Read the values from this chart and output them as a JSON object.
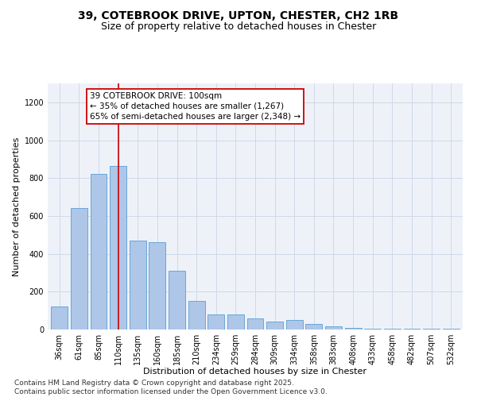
{
  "title1": "39, COTEBROOK DRIVE, UPTON, CHESTER, CH2 1RB",
  "title2": "Size of property relative to detached houses in Chester",
  "xlabel": "Distribution of detached houses by size in Chester",
  "ylabel": "Number of detached properties",
  "categories": [
    "36sqm",
    "61sqm",
    "85sqm",
    "110sqm",
    "135sqm",
    "160sqm",
    "185sqm",
    "210sqm",
    "234sqm",
    "259sqm",
    "284sqm",
    "309sqm",
    "334sqm",
    "358sqm",
    "383sqm",
    "408sqm",
    "433sqm",
    "458sqm",
    "482sqm",
    "507sqm",
    "532sqm"
  ],
  "values": [
    120,
    640,
    820,
    865,
    470,
    460,
    310,
    150,
    80,
    80,
    60,
    40,
    50,
    30,
    15,
    8,
    5,
    5,
    4,
    3,
    3
  ],
  "bar_color": "#aec6e8",
  "bar_edge_color": "#5a9fd4",
  "grid_color": "#d0d8e8",
  "background_color": "#eef2f8",
  "vline_x_index": 3,
  "vline_color": "#cc0000",
  "annotation_text": "39 COTEBROOK DRIVE: 100sqm\n← 35% of detached houses are smaller (1,267)\n65% of semi-detached houses are larger (2,348) →",
  "annotation_box_color": "#cc0000",
  "ylim": [
    0,
    1300
  ],
  "yticks": [
    0,
    200,
    400,
    600,
    800,
    1000,
    1200
  ],
  "footer": "Contains HM Land Registry data © Crown copyright and database right 2025.\nContains public sector information licensed under the Open Government Licence v3.0.",
  "title1_fontsize": 10,
  "title2_fontsize": 9,
  "xlabel_fontsize": 8,
  "ylabel_fontsize": 8,
  "tick_fontsize": 7,
  "annotation_fontsize": 7.5,
  "footer_fontsize": 6.5
}
